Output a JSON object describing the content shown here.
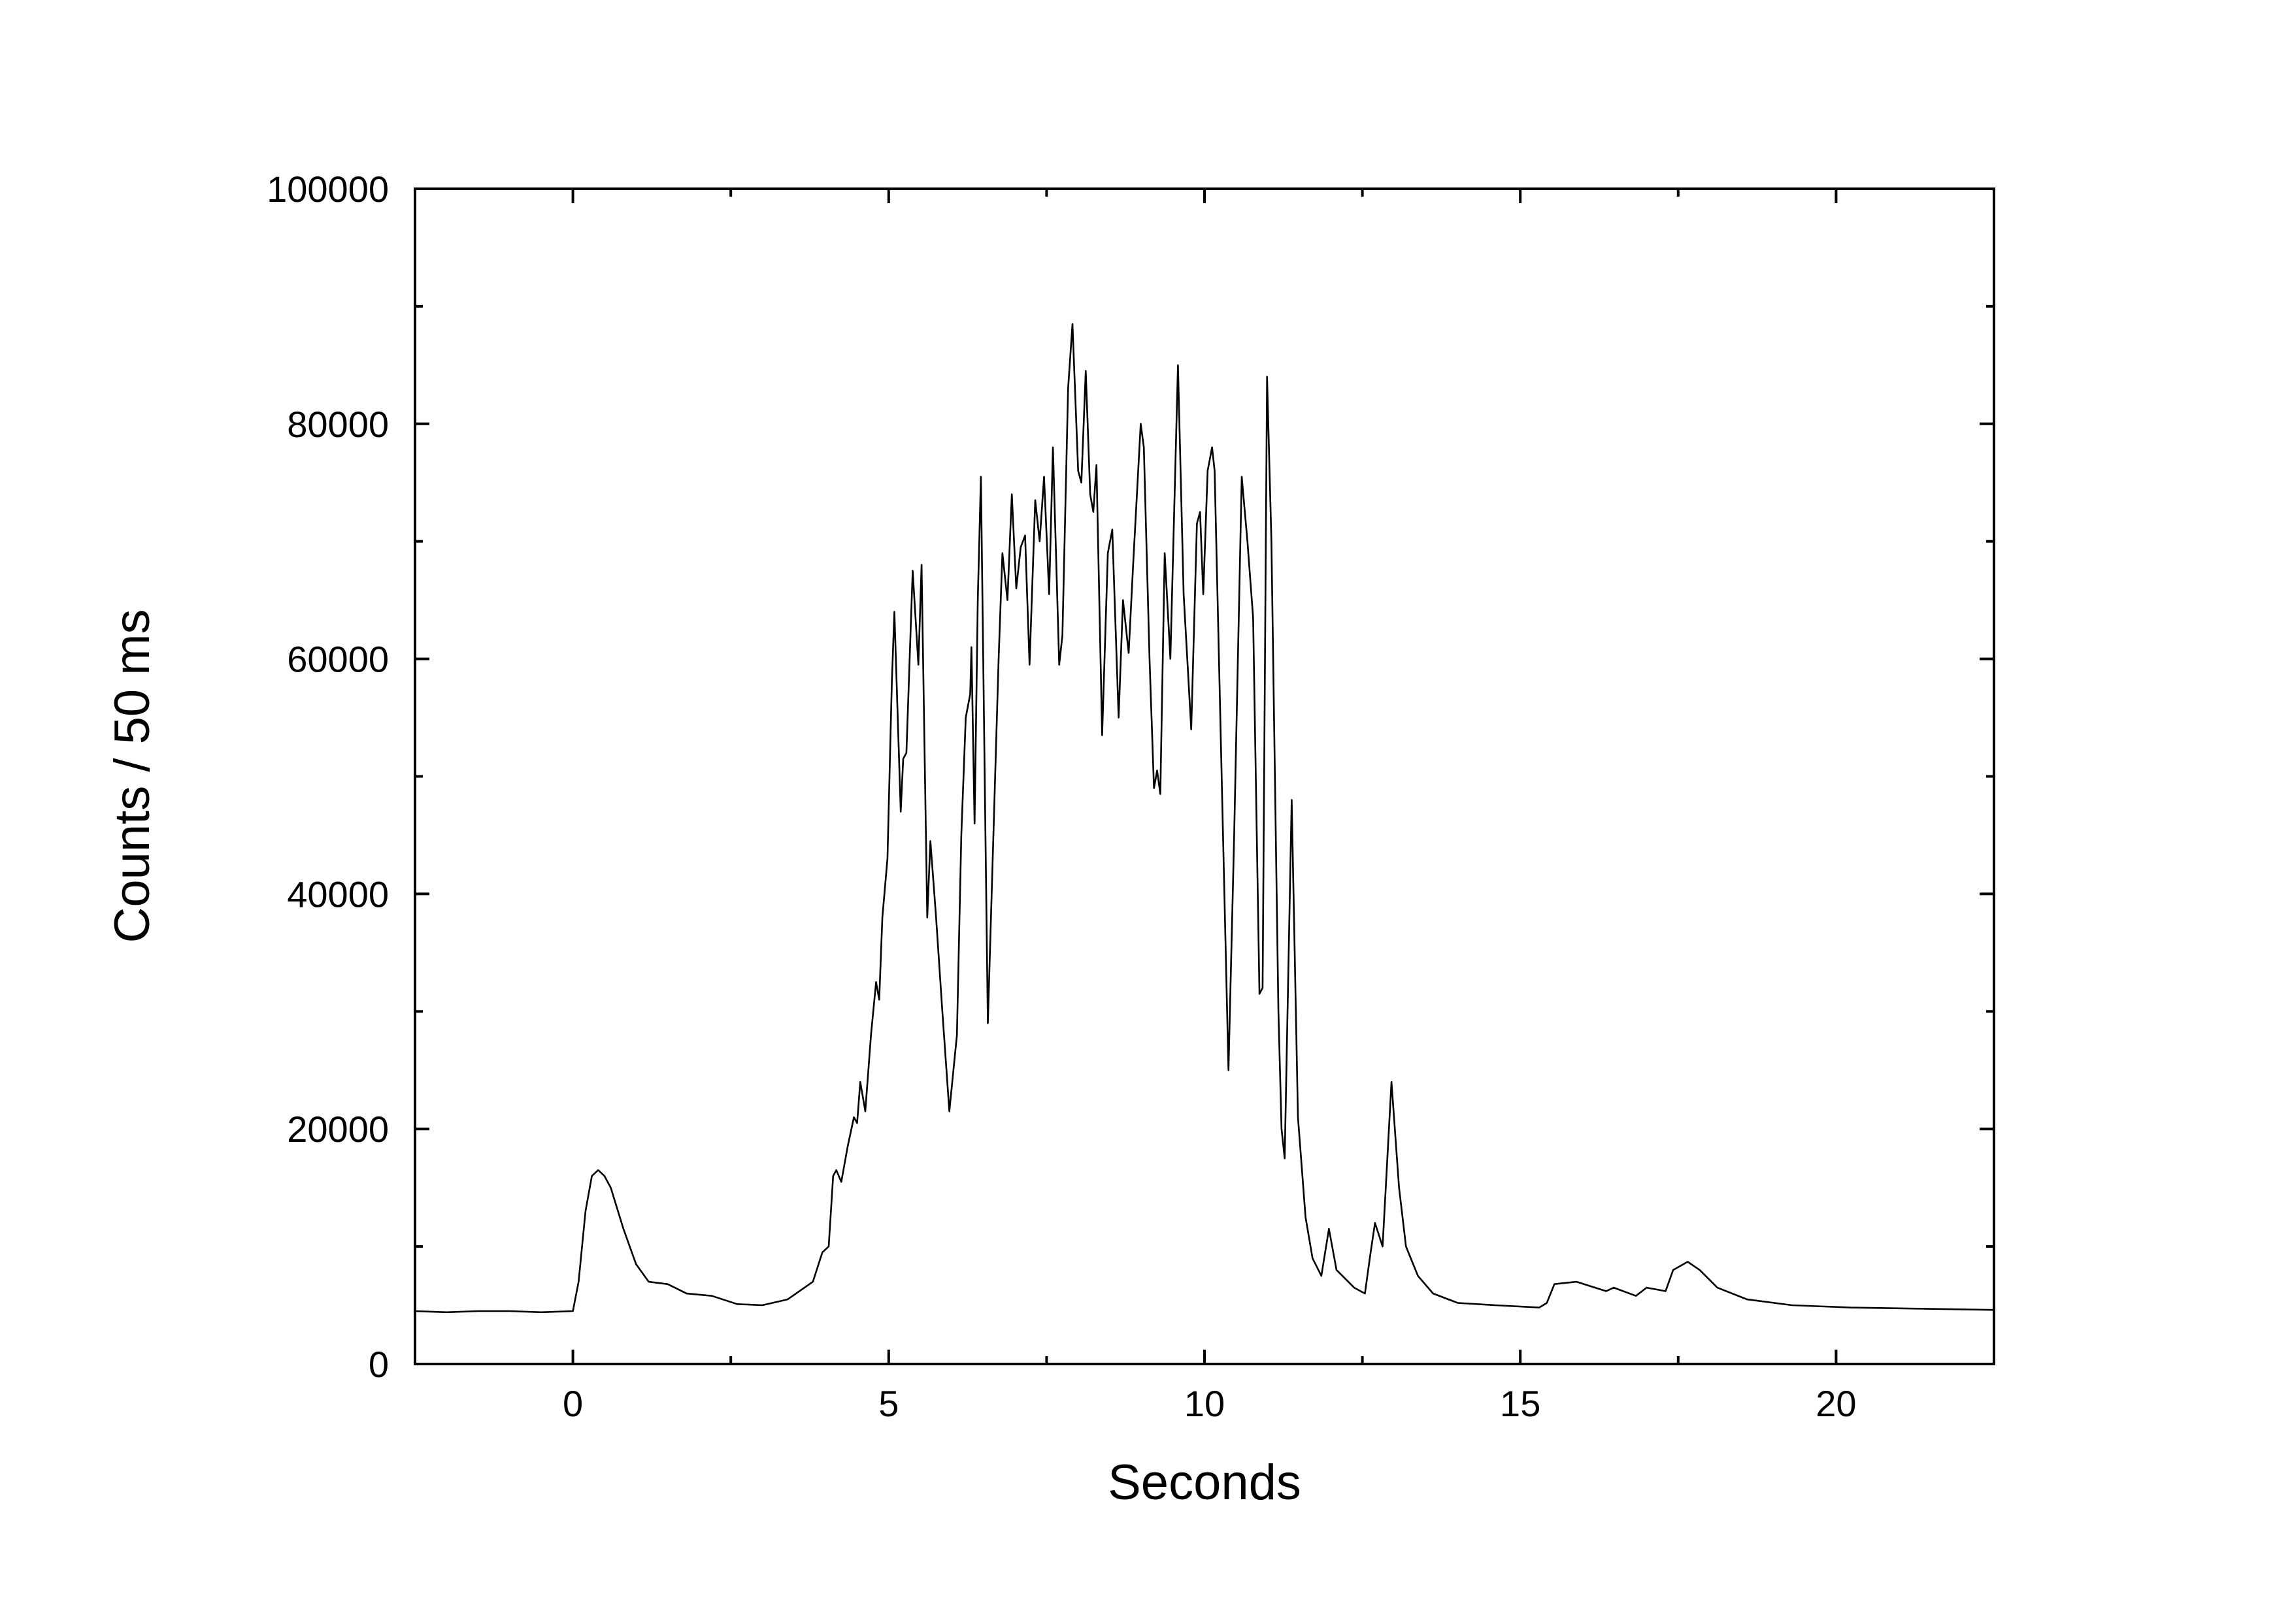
{
  "chart_data": {
    "type": "line",
    "xlabel": "Seconds",
    "ylabel": "Counts / 50 ms",
    "xlim": [
      -2.5,
      22.5
    ],
    "xticks": [
      0,
      5,
      10,
      15,
      20
    ],
    "xminorticks": [
      2.5,
      7.5,
      12.5,
      17.5
    ],
    "ylim": [
      0,
      100000
    ],
    "yticks": [
      0,
      20000,
      40000,
      60000,
      80000,
      100000
    ],
    "yminorticks": [
      10000,
      30000,
      50000,
      70000,
      90000
    ],
    "grid": false,
    "color": "#000000",
    "x": [
      -2.5,
      -2,
      -1.5,
      -1,
      -0.5,
      0,
      0.09,
      0.2,
      0.3,
      0.4,
      0.5,
      0.6,
      0.8,
      1.0,
      1.2,
      1.5,
      1.8,
      2.2,
      2.6,
      3.0,
      3.4,
      3.8,
      3.95,
      4.05,
      4.12,
      4.17,
      4.25,
      4.35,
      4.45,
      4.5,
      4.55,
      4.63,
      4.72,
      4.8,
      4.85,
      4.9,
      4.98,
      5.05,
      5.09,
      5.19,
      5.23,
      5.28,
      5.38,
      5.47,
      5.52,
      5.61,
      5.66,
      5.75,
      5.85,
      5.96,
      6.08,
      6.15,
      6.22,
      6.29,
      6.31,
      6.36,
      6.41,
      6.46,
      6.57,
      6.74,
      6.8,
      6.88,
      6.95,
      7.02,
      7.09,
      7.16,
      7.23,
      7.32,
      7.39,
      7.46,
      7.54,
      7.6,
      7.7,
      7.75,
      7.84,
      7.91,
      8.0,
      8.05,
      8.12,
      8.19,
      8.24,
      8.29,
      8.38,
      8.47,
      8.54,
      8.64,
      8.71,
      8.8,
      8.87,
      8.99,
      9.04,
      9.13,
      9.2,
      9.25,
      9.3,
      9.37,
      9.46,
      9.58,
      9.67,
      9.79,
      9.88,
      9.93,
      9.98,
      10.05,
      10.12,
      10.16,
      10.28,
      10.38,
      10.47,
      10.59,
      10.68,
      10.77,
      10.87,
      10.92,
      10.99,
      11.06,
      11.17,
      11.22,
      11.27,
      11.38,
      11.48,
      11.6,
      11.71,
      11.85,
      11.97,
      12.09,
      12.37,
      12.54,
      12.63,
      12.7,
      12.82,
      12.96,
      13.08,
      13.19,
      13.38,
      13.62,
      14.01,
      14.6,
      15.3,
      15.42,
      15.54,
      15.89,
      16.36,
      16.48,
      16.83,
      17.0,
      17.3,
      17.42,
      17.65,
      17.84,
      18.12,
      18.59,
      19.3,
      20.23,
      21.4,
      22.5
    ],
    "values": [
      4500,
      4400,
      4500,
      4500,
      4400,
      4500,
      7000,
      13000,
      16000,
      16500,
      16000,
      15000,
      11500,
      8500,
      7000,
      6800,
      6000,
      5800,
      5100,
      5000,
      5500,
      7000,
      9500,
      10000,
      16000,
      16500,
      15500,
      18500,
      21000,
      20500,
      24000,
      21500,
      28000,
      32500,
      31000,
      38000,
      43000,
      58000,
      64000,
      47000,
      51500,
      52000,
      67500,
      59500,
      68000,
      38000,
      44500,
      38000,
      30000,
      21500,
      28000,
      45000,
      55000,
      57000,
      61000,
      46000,
      65000,
      75500,
      29000,
      60000,
      69000,
      65000,
      74000,
      66000,
      69500,
      70500,
      59500,
      73500,
      70000,
      75500,
      65500,
      78000,
      59500,
      62000,
      83000,
      88500,
      76000,
      75000,
      84500,
      74000,
      72500,
      76500,
      53500,
      69000,
      71000,
      55000,
      65000,
      60500,
      68000,
      80000,
      78000,
      60000,
      49000,
      50500,
      48500,
      69000,
      60000,
      85000,
      65500,
      54000,
      71500,
      72500,
      65500,
      76000,
      78000,
      76000,
      48000,
      25000,
      45000,
      75500,
      70000,
      63500,
      31500,
      32000,
      84000,
      70000,
      30000,
      20000,
      17500,
      48000,
      21000,
      12500,
      9000,
      7500,
      11500,
      8000,
      6500,
      6000,
      9500,
      12000,
      10000,
      24000,
      15000,
      10000,
      7500,
      6000,
      5200,
      5000,
      4800,
      5200,
      6800,
      7000,
      6200,
      6500,
      5800,
      6500,
      6200,
      8000,
      8700,
      8000,
      6500,
      5500,
      5000,
      4800,
      4700,
      4600
    ]
  }
}
